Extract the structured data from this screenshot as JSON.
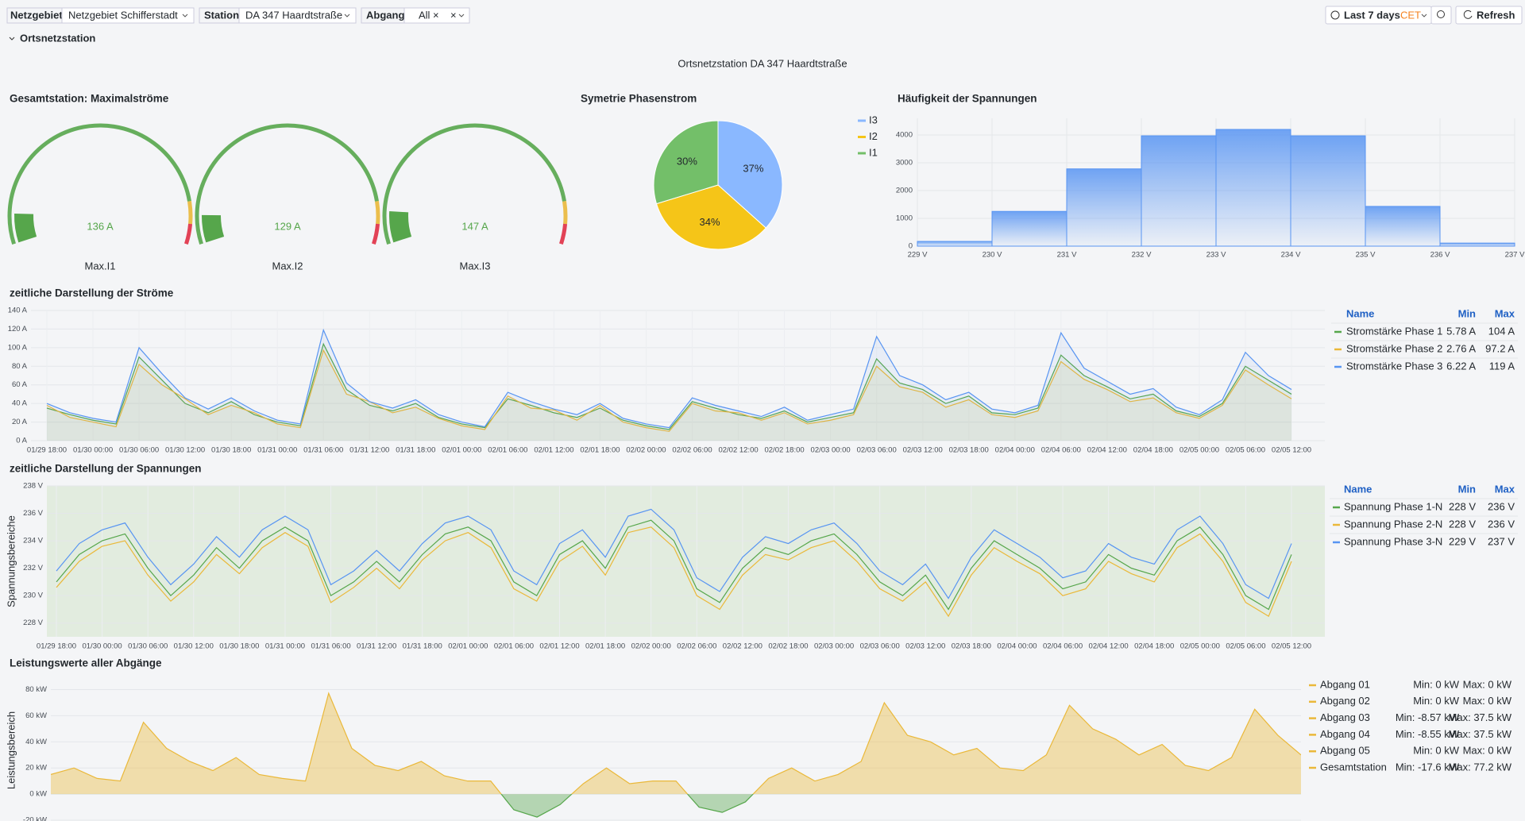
{
  "toolbar": {
    "variables": [
      {
        "label": "Netzgebiet",
        "value": "Netzgebiet Schifferstadt"
      },
      {
        "label": "Station",
        "value": "DA 347 Haardtstraße"
      },
      {
        "label": "Abgang",
        "value": "All"
      }
    ],
    "time_range": "Last 7 days",
    "timezone": "CET",
    "refresh": "Refresh"
  },
  "section": "Ortsnetzstation",
  "dashboard_title": "Ortsnetzstation DA 347 Haardtstraße",
  "chart_data": [
    {
      "type": "gauge",
      "title": "Gesamtstation: Maximalströme",
      "categories": [
        "Max.I1",
        "Max.I2",
        "Max.I3"
      ],
      "values": [
        136,
        129,
        147
      ],
      "value_labels": [
        "136 A",
        "129 A",
        "147 A"
      ],
      "ylim": [
        0,
        1500
      ],
      "thresholds": [
        {
          "value": 0,
          "color": "#56a64b"
        },
        {
          "value": 1310,
          "color": "#eab839"
        },
        {
          "value": 1410,
          "color": "#e02f44"
        }
      ]
    },
    {
      "type": "pie",
      "title": "Symetrie Phasenstrom",
      "categories": [
        "I3",
        "I2",
        "I1"
      ],
      "values": [
        37,
        34,
        30
      ],
      "value_labels": [
        "37%",
        "34%",
        "30%"
      ],
      "colors": [
        "#8ab8ff",
        "#f5c518",
        "#73bf69"
      ]
    },
    {
      "type": "histogram",
      "title": "Häufigkeit der Spannungen",
      "bins": [
        229,
        230,
        231,
        232,
        233,
        234,
        235,
        236,
        237
      ],
      "counts": [
        170,
        1250,
        2780,
        3970,
        4200,
        3970,
        1430,
        110
      ],
      "color": "#5794f2",
      "xlim": [
        229,
        237
      ],
      "xticks": [
        {
          "value": 229,
          "label": "229 V"
        },
        {
          "value": 230,
          "label": "230 V"
        },
        {
          "value": 231,
          "label": "231 V"
        },
        {
          "value": 232,
          "label": "232 V"
        },
        {
          "value": 233,
          "label": "233 V"
        },
        {
          "value": 234,
          "label": "234 V"
        },
        {
          "value": 235,
          "label": "235 V"
        },
        {
          "value": 236,
          "label": "236 V"
        },
        {
          "value": 237,
          "label": "237 V"
        }
      ],
      "ylim": [
        0,
        4600
      ],
      "yticks": [
        0,
        1000,
        2000,
        3000,
        4000
      ],
      "grid": true
    },
    {
      "type": "line",
      "title": "zeitliche Darstellung der Ströme",
      "x": [
        "01/29 18:00",
        null,
        "01/30 00:00",
        null,
        "01/30 06:00",
        null,
        "01/30 12:00",
        null,
        "01/30 18:00",
        null,
        "01/31 00:00",
        null,
        "01/31 06:00",
        null,
        "01/31 12:00",
        null,
        "01/31 18:00",
        null,
        "02/01 00:00",
        null,
        "02/01 06:00",
        null,
        "02/01 12:00",
        null,
        "02/01 18:00",
        null,
        "02/02 00:00",
        null,
        "02/02 06:00",
        null,
        "02/02 12:00",
        null,
        "02/02 18:00",
        null,
        "02/03 00:00",
        null,
        "02/03 06:00",
        null,
        "02/03 12:00",
        null,
        "02/03 18:00",
        null,
        "02/04 00:00",
        null,
        "02/04 06:00",
        null,
        "02/04 12:00",
        null,
        "02/04 18:00",
        null,
        "02/05 00:00",
        null,
        "02/05 06:00",
        null,
        "02/05 12:00"
      ],
      "series": [
        {
          "name": "Stromstärke Phase 1",
          "color": "#56a64b",
          "values": [
            35,
            28,
            22,
            18,
            90,
            65,
            40,
            30,
            42,
            28,
            20,
            16,
            104,
            55,
            38,
            32,
            40,
            25,
            18,
            14,
            45,
            38,
            30,
            25,
            35,
            22,
            16,
            12,
            42,
            35,
            28,
            24,
            32,
            20,
            25,
            30,
            88,
            62,
            55,
            40,
            48,
            30,
            28,
            35,
            92,
            70,
            58,
            45,
            50,
            32,
            26,
            40,
            80,
            65,
            50
          ]
        },
        {
          "name": "Stromstärke Phase 2",
          "color": "#eab839",
          "values": [
            38,
            25,
            20,
            15,
            82,
            60,
            45,
            28,
            38,
            30,
            18,
            14,
            97.2,
            50,
            42,
            30,
            36,
            24,
            16,
            12,
            48,
            35,
            33,
            22,
            38,
            20,
            14,
            10,
            40,
            32,
            30,
            22,
            30,
            18,
            22,
            28,
            80,
            58,
            52,
            36,
            44,
            28,
            25,
            32,
            85,
            66,
            55,
            42,
            46,
            30,
            24,
            38,
            76,
            60,
            45
          ]
        },
        {
          "name": "Stromstärke Phase 3",
          "color": "#5794f2",
          "values": [
            40,
            30,
            24,
            20,
            100,
            72,
            46,
            34,
            46,
            32,
            22,
            18,
            119,
            62,
            42,
            35,
            44,
            28,
            20,
            15,
            52,
            42,
            34,
            28,
            40,
            24,
            18,
            14,
            46,
            38,
            32,
            26,
            36,
            22,
            28,
            34,
            112,
            70,
            60,
            44,
            52,
            34,
            30,
            38,
            116,
            78,
            64,
            50,
            56,
            36,
            28,
            44,
            95,
            70,
            55
          ]
        }
      ],
      "ylim": [
        0,
        140
      ],
      "yticks": [
        {
          "value": 0,
          "label": "0 A"
        },
        {
          "value": 20,
          "label": "20 A"
        },
        {
          "value": 40,
          "label": "40 A"
        },
        {
          "value": 60,
          "label": "60 A"
        },
        {
          "value": 80,
          "label": "80 A"
        },
        {
          "value": 100,
          "label": "100 A"
        },
        {
          "value": 120,
          "label": "120 A"
        },
        {
          "value": 140,
          "label": "140 A"
        }
      ],
      "grid": true,
      "legend": {
        "header": [
          "Name",
          "Min",
          "Max"
        ],
        "min": [
          "5.78 A",
          "2.76 A",
          "6.22 A"
        ],
        "max": [
          "104 A",
          "97.2 A",
          "119 A"
        ]
      }
    },
    {
      "type": "line",
      "title": "zeitliche Darstellung der Spannungen",
      "ylabel": "Spannungsbereiche",
      "plot_color": "#e2ecdf",
      "x": [
        "01/29 18:00",
        null,
        "01/30 00:00",
        null,
        "01/30 06:00",
        null,
        "01/30 12:00",
        null,
        "01/30 18:00",
        null,
        "01/31 00:00",
        null,
        "01/31 06:00",
        null,
        "01/31 12:00",
        null,
        "01/31 18:00",
        null,
        "02/01 00:00",
        null,
        "02/01 06:00",
        null,
        "02/01 12:00",
        null,
        "02/01 18:00",
        null,
        "02/02 00:00",
        null,
        "02/02 06:00",
        null,
        "02/02 12:00",
        null,
        "02/02 18:00",
        null,
        "02/03 00:00",
        null,
        "02/03 06:00",
        null,
        "02/03 12:00",
        null,
        "02/03 18:00",
        null,
        "02/04 00:00",
        null,
        "02/04 06:00",
        null,
        "02/04 12:00",
        null,
        "02/04 18:00",
        null,
        "02/05 00:00",
        null,
        "02/05 06:00",
        null,
        "02/05 12:00"
      ],
      "series": [
        {
          "name": "Spannung Phase 1-N",
          "color": "#56a64b",
          "values": [
            231,
            233,
            234,
            234.5,
            232,
            230,
            231.5,
            233.5,
            232,
            234,
            235,
            234,
            230,
            231,
            232.5,
            231,
            233,
            234.5,
            235,
            234,
            231,
            230,
            233,
            234,
            232,
            235,
            235.5,
            234,
            230.5,
            229.5,
            232,
            233.5,
            233,
            234,
            234.5,
            233,
            231,
            230,
            231.5,
            229,
            232,
            234,
            233,
            232,
            230.5,
            231,
            233,
            232,
            231.5,
            234,
            235,
            233,
            230,
            229,
            233
          ]
        },
        {
          "name": "Spannung Phase 2-N",
          "color": "#eab839",
          "values": [
            230.6,
            232.5,
            233.6,
            234,
            231.5,
            229.6,
            231,
            233,
            231.6,
            233.5,
            234.6,
            233.6,
            229.5,
            230.6,
            232,
            230.5,
            232.6,
            234,
            234.6,
            233.5,
            230.5,
            229.6,
            232.5,
            233.6,
            231.5,
            234.6,
            235,
            233.5,
            230,
            229,
            231.5,
            233,
            232.6,
            233.5,
            234,
            232.5,
            230.5,
            229.6,
            231,
            228.5,
            231.5,
            233.5,
            232.5,
            231.6,
            230,
            230.5,
            232.5,
            231.6,
            231,
            233.5,
            234.5,
            232.5,
            229.5,
            228.5,
            232.5
          ]
        },
        {
          "name": "Spannung Phase 3-N",
          "color": "#5794f2",
          "values": [
            231.8,
            233.8,
            234.8,
            235.3,
            232.8,
            230.8,
            232.3,
            234.3,
            232.8,
            234.8,
            235.8,
            234.8,
            230.8,
            231.8,
            233.3,
            231.8,
            233.8,
            235.3,
            235.8,
            234.8,
            231.8,
            230.8,
            233.8,
            234.8,
            232.8,
            235.8,
            236.3,
            234.8,
            231.3,
            230.3,
            232.8,
            234.3,
            233.8,
            234.8,
            235.3,
            233.8,
            231.8,
            230.8,
            232.3,
            229.8,
            232.8,
            234.8,
            233.8,
            232.8,
            231.3,
            231.8,
            233.8,
            232.8,
            232.3,
            234.8,
            235.8,
            233.8,
            230.8,
            229.8,
            233.8
          ]
        }
      ],
      "ylim": [
        227,
        238
      ],
      "yticks": [
        {
          "value": 228,
          "label": "228 V"
        },
        {
          "value": 230,
          "label": "230 V"
        },
        {
          "value": 232,
          "label": "232 V"
        },
        {
          "value": 234,
          "label": "234 V"
        },
        {
          "value": 236,
          "label": "236 V"
        },
        {
          "value": 238,
          "label": "238 V"
        }
      ],
      "grid": true,
      "legend": {
        "header": [
          "Name",
          "Min",
          "Max"
        ],
        "min": [
          "228 V",
          "228 V",
          "229 V"
        ],
        "max": [
          "236 V",
          "236 V",
          "237 V"
        ]
      }
    },
    {
      "type": "area",
      "title": "Leistungswerte aller Abgänge",
      "ylabel": "Leistungsbereich",
      "series": [
        {
          "color": "#eab839",
          "negative_color": "#56a64b",
          "values": [
            15,
            20,
            12,
            10,
            55,
            35,
            25,
            18,
            28,
            15,
            12,
            10,
            77.2,
            35,
            22,
            18,
            25,
            14,
            10,
            10,
            -12,
            -17.6,
            -8,
            8,
            20,
            8,
            10,
            10,
            -10,
            -14,
            -6,
            12,
            20,
            10,
            15,
            25,
            70,
            45,
            40,
            30,
            35,
            20,
            18,
            30,
            68,
            50,
            42,
            30,
            38,
            22,
            18,
            28,
            65,
            45,
            30
          ]
        }
      ],
      "ylim": [
        -20,
        87
      ],
      "yticks": [
        {
          "value": -20,
          "label": "-20 kW"
        },
        {
          "value": 0,
          "label": "0 kW"
        },
        {
          "value": 20,
          "label": "20 kW"
        },
        {
          "value": 40,
          "label": "40 kW"
        },
        {
          "value": 60,
          "label": "60 kW"
        },
        {
          "value": 80,
          "label": "80 kW"
        }
      ],
      "grid": true,
      "legend": {
        "rows": [
          {
            "name": "Abgang 01",
            "color": "#eab839",
            "min": "Min: 0 kW",
            "max": "Max: 0 kW"
          },
          {
            "name": "Abgang 02",
            "color": "#eab839",
            "min": "Min: 0 kW",
            "max": "Max: 0 kW"
          },
          {
            "name": "Abgang 03",
            "color": "#eab839",
            "min": "Min: -8.57 kW",
            "max": "Max: 37.5 kW"
          },
          {
            "name": "Abgang 04",
            "color": "#eab839",
            "min": "Min: -8.55 kW",
            "max": "Max: 37.5 kW"
          },
          {
            "name": "Abgang 05",
            "color": "#eab839",
            "min": "Min: 0 kW",
            "max": "Max: 0 kW"
          },
          {
            "name": "Gesamtstation",
            "color": "#eab839",
            "min": "Min: -17.6 kW",
            "max": "Max: 77.2 kW"
          }
        ]
      }
    }
  ]
}
